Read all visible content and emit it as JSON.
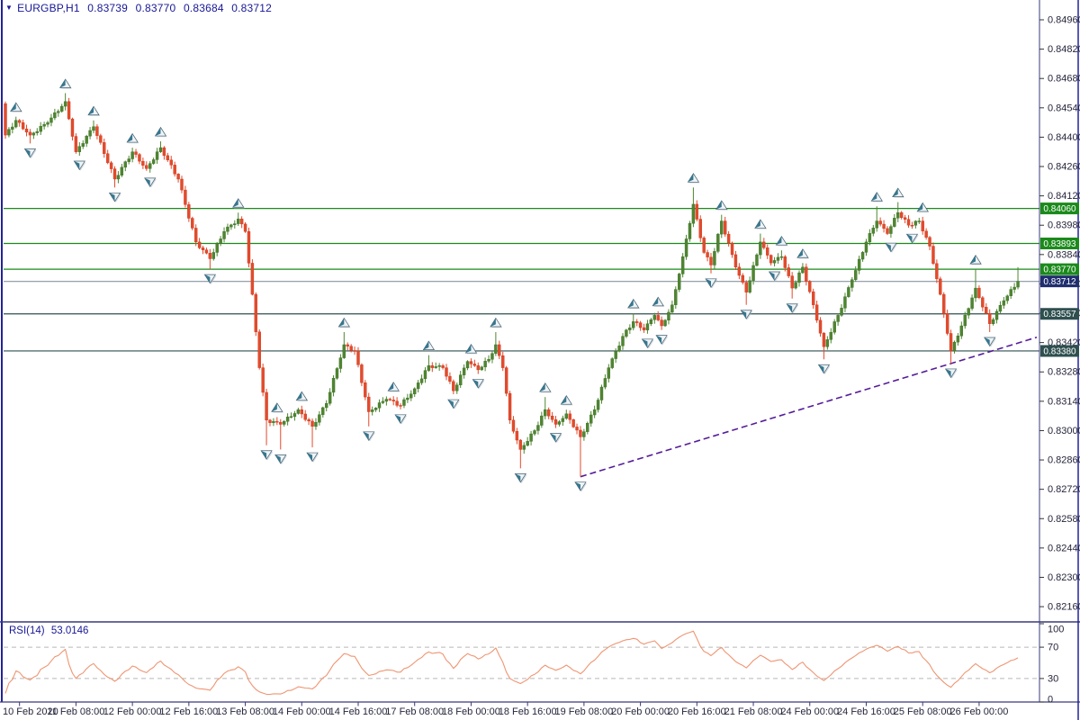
{
  "colors": {
    "bull": "#4e8630",
    "bull_edge": "#3c6a24",
    "bear": "#e54a2b",
    "bear_edge": "#c43a1f",
    "level_green": "#1b8a1b",
    "level_slate": "#2f4f4f",
    "current_line": "#8795a1",
    "current_tag": "#202e6e",
    "trendline": "#551c99",
    "rsi_line": "#ef9572",
    "rsi_level_dash": "#b6b6b6",
    "frame": "#39397d",
    "border_navy": "#22229a",
    "axis_text": "#26263c",
    "tag_text": "#ffffff",
    "fractal_light": "#eef3f7",
    "fractal_teal": "#36778f",
    "fractal_edge": "#44606f",
    "fractal_shadow": "#aebbc4"
  },
  "chart_data": {
    "type": "candlestick",
    "symbol_header": {
      "dropdown_icon": "▼",
      "symbol": "EURGBP,H1",
      "open": "0.83739",
      "high": "0.83770",
      "low": "0.83684",
      "close": "0.83712"
    },
    "timeframe": "H1",
    "candle_count": 288,
    "first_open": 0.8456,
    "keypoints_format": "[index, close, high_spike_or_null, low_spike_or_null]",
    "keypoints": [
      [
        0,
        0.8441,
        null,
        null
      ],
      [
        3,
        0.8448,
        null,
        null
      ],
      [
        7,
        0.8441,
        null,
        0.8437
      ],
      [
        12,
        0.8447,
        null,
        null
      ],
      [
        17,
        0.8457,
        0.8461,
        null
      ],
      [
        20,
        0.8433,
        null,
        null
      ],
      [
        25,
        0.8445,
        0.8448,
        null
      ],
      [
        31,
        0.842,
        null,
        0.8416
      ],
      [
        36,
        0.8433,
        null,
        null
      ],
      [
        40,
        0.8425,
        null,
        null
      ],
      [
        44,
        0.8435,
        0.8438,
        null
      ],
      [
        49,
        0.842,
        null,
        null
      ],
      [
        54,
        0.839,
        null,
        null
      ],
      [
        58,
        0.8382,
        null,
        0.8377
      ],
      [
        62,
        0.8395,
        null,
        null
      ],
      [
        66,
        0.8401,
        0.8404,
        null
      ],
      [
        68,
        0.8395,
        null,
        null
      ],
      [
        70,
        0.8365,
        null,
        null
      ],
      [
        72,
        0.833,
        null,
        null
      ],
      [
        74,
        0.8305,
        null,
        0.8293
      ],
      [
        78,
        0.8303,
        null,
        0.8291
      ],
      [
        83,
        0.831,
        null,
        null
      ],
      [
        87,
        0.8302,
        null,
        0.8292
      ],
      [
        91,
        0.8313,
        null,
        null
      ],
      [
        96,
        0.8341,
        0.8347,
        null
      ],
      [
        99,
        0.8338,
        null,
        null
      ],
      [
        103,
        0.8309,
        null,
        0.8302
      ],
      [
        108,
        0.8315,
        null,
        null
      ],
      [
        112,
        0.8312,
        null,
        null
      ],
      [
        116,
        0.832,
        null,
        null
      ],
      [
        120,
        0.8331,
        0.8336,
        null
      ],
      [
        124,
        0.833,
        null,
        null
      ],
      [
        127,
        0.8319,
        null,
        null
      ],
      [
        131,
        0.8333,
        null,
        null
      ],
      [
        134,
        0.8329,
        null,
        null
      ],
      [
        137,
        0.8334,
        null,
        null
      ],
      [
        139,
        0.8341,
        0.8347,
        null
      ],
      [
        141,
        0.833,
        null,
        null
      ],
      [
        143,
        0.8305,
        null,
        null
      ],
      [
        146,
        0.8291,
        null,
        0.8282
      ],
      [
        150,
        0.83,
        null,
        null
      ],
      [
        153,
        0.831,
        0.8316,
        null
      ],
      [
        156,
        0.8303,
        null,
        null
      ],
      [
        159,
        0.8308,
        null,
        null
      ],
      [
        163,
        0.8297,
        null,
        0.8278
      ],
      [
        167,
        0.831,
        null,
        null
      ],
      [
        171,
        0.833,
        null,
        null
      ],
      [
        175,
        0.8345,
        null,
        null
      ],
      [
        178,
        0.8352,
        0.8356,
        null
      ],
      [
        181,
        0.8348,
        null,
        null
      ],
      [
        184,
        0.8355,
        null,
        null
      ],
      [
        186,
        0.835,
        null,
        null
      ],
      [
        189,
        0.836,
        null,
        null
      ],
      [
        192,
        0.8383,
        null,
        null
      ],
      [
        195,
        0.8408,
        0.8416,
        null
      ],
      [
        198,
        0.8385,
        null,
        null
      ],
      [
        200,
        0.8379,
        null,
        0.8375
      ],
      [
        203,
        0.84,
        0.8403,
        null
      ],
      [
        207,
        0.8378,
        null,
        null
      ],
      [
        210,
        0.8366,
        null,
        0.836
      ],
      [
        214,
        0.839,
        0.8394,
        null
      ],
      [
        217,
        0.838,
        null,
        null
      ],
      [
        220,
        0.8383,
        0.8386,
        null
      ],
      [
        223,
        0.8368,
        null,
        0.8363
      ],
      [
        226,
        0.8378,
        null,
        null
      ],
      [
        229,
        0.836,
        null,
        null
      ],
      [
        232,
        0.834,
        null,
        0.8334
      ],
      [
        236,
        0.8355,
        null,
        null
      ],
      [
        240,
        0.8372,
        null,
        null
      ],
      [
        244,
        0.839,
        null,
        null
      ],
      [
        247,
        0.84,
        0.8407,
        null
      ],
      [
        250,
        0.8394,
        null,
        null
      ],
      [
        253,
        0.8404,
        0.8409,
        null
      ],
      [
        256,
        0.8398,
        null,
        null
      ],
      [
        259,
        0.84,
        null,
        null
      ],
      [
        262,
        0.8388,
        null,
        null
      ],
      [
        265,
        0.8365,
        null,
        null
      ],
      [
        268,
        0.8338,
        null,
        0.8332
      ],
      [
        271,
        0.835,
        null,
        null
      ],
      [
        275,
        0.8368,
        0.8377,
        null
      ],
      [
        279,
        0.8351,
        null,
        0.8347
      ],
      [
        283,
        0.8362,
        null,
        null
      ],
      [
        287,
        0.83712,
        0.8378,
        null
      ]
    ],
    "levels": [
      {
        "price": 0.8406,
        "label": "0.84060",
        "style": "green"
      },
      {
        "price": 0.83893,
        "label": "0.83893",
        "style": "green"
      },
      {
        "price": 0.8377,
        "label": "0.83770",
        "style": "green"
      },
      {
        "price": 0.83557,
        "label": "0.83557",
        "style": "slate"
      },
      {
        "price": 0.8338,
        "label": "0.83380",
        "style": "slate"
      }
    ],
    "current_price": {
      "price": 0.83712,
      "label": "0.83712"
    },
    "trendline": {
      "style": "dashed",
      "from": {
        "index": 163,
        "price": 0.8278
      },
      "through": {
        "index": 268,
        "price": 0.8332
      },
      "extend_to_right_edge": true
    },
    "y_axis": {
      "ticks": [
        "0.84960",
        "0.84820",
        "0.84680",
        "0.84540",
        "0.84400",
        "0.84260",
        "0.84120",
        "0.83980",
        "0.83840",
        "0.83700",
        "0.83560",
        "0.83420",
        "0.83280",
        "0.83140",
        "0.83000",
        "0.82860",
        "0.82720",
        "0.82580",
        "0.82440",
        "0.82300",
        "0.82160"
      ],
      "top_tick_value": 0.8496,
      "tick_step": 0.0014
    },
    "x_axis": {
      "labels": [
        "10 Feb 2020",
        "11 Feb 08:00",
        "12 Feb 00:00",
        "12 Feb 16:00",
        "13 Feb 08:00",
        "14 Feb 00:00",
        "14 Feb 16:00",
        "17 Feb 08:00",
        "18 Feb 00:00",
        "18 Feb 16:00",
        "19 Feb 08:00",
        "20 Feb 00:00",
        "20 Feb 16:00",
        "21 Feb 08:00",
        "24 Feb 00:00",
        "24 Feb 16:00",
        "25 Feb 08:00",
        "26 Feb 00:00"
      ],
      "candles_per_label": 16
    },
    "rsi": {
      "label": "RSI(14)",
      "value": "53.0146",
      "period": 14,
      "levels": [
        70,
        30
      ],
      "scale_labels": [
        {
          "v": 100,
          "t": "100"
        },
        {
          "v": 70,
          "t": "70"
        },
        {
          "v": 30,
          "t": "30"
        },
        {
          "v": 0,
          "t": "0"
        }
      ],
      "range": [
        0,
        100
      ]
    }
  }
}
